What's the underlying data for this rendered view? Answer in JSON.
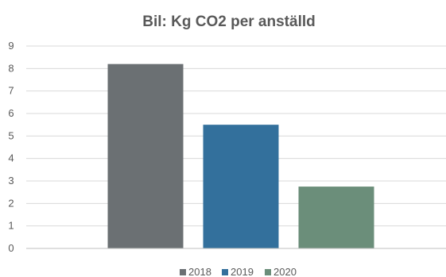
{
  "chart_data": {
    "type": "bar",
    "title": "Bil:  Kg CO2 per anställd",
    "xlabel": "",
    "ylabel": "",
    "ylim": [
      0,
      9
    ],
    "yticks": [
      0,
      1,
      2,
      3,
      4,
      5,
      6,
      7,
      8,
      9
    ],
    "grid": true,
    "legend_position": "bottom",
    "series": [
      {
        "name": "2018",
        "value": 8.2,
        "color": "#6b7073"
      },
      {
        "name": "2019",
        "value": 5.5,
        "color": "#33709c"
      },
      {
        "name": "2020",
        "value": 2.75,
        "color": "#6b8e7a"
      }
    ]
  }
}
